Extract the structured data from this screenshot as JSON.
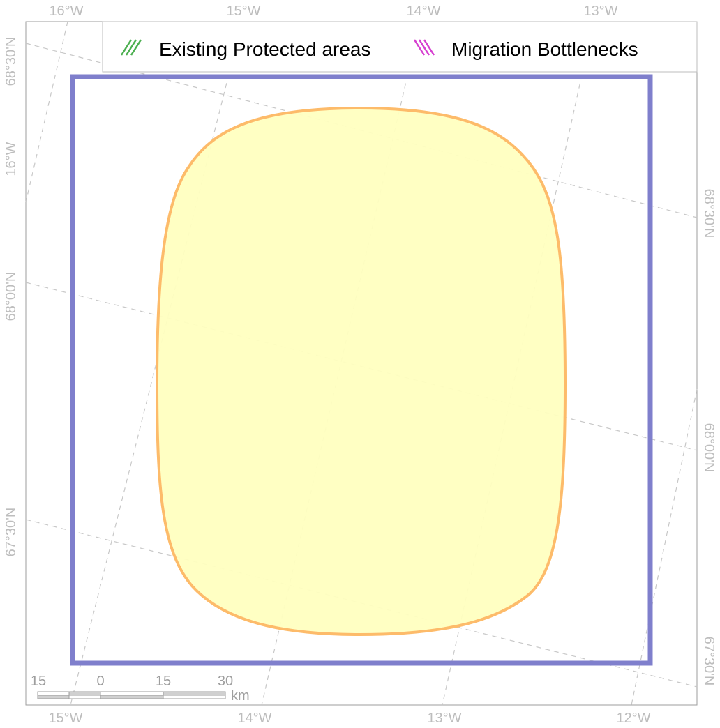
{
  "map": {
    "graticule_labels": {
      "top": [
        "16°W",
        "15°W",
        "14°W",
        "13°W"
      ],
      "bottom": [
        "15°W",
        "14°W",
        "13°W",
        "12°W"
      ],
      "left": [
        "68°30'N",
        "16°W",
        "68°00'N",
        "67°30'N"
      ],
      "right": [
        "68°30'N",
        "68°00'N",
        "67°30'N"
      ]
    },
    "legend": {
      "items": [
        {
          "label": "Existing Protected areas",
          "color": "#4caf50"
        },
        {
          "label": "Migration Bottlenecks",
          "color": "#d63fd0"
        }
      ]
    },
    "scale_bar": {
      "labels": [
        "15",
        "0",
        "15",
        "30"
      ],
      "unit": "km"
    },
    "colors": {
      "frame": "#7f7fcc",
      "region_fill": "#ffffc0",
      "region_stroke": "#fdbb6a",
      "graticule": "#c8c8c8",
      "border": "#9e9e9e"
    }
  }
}
